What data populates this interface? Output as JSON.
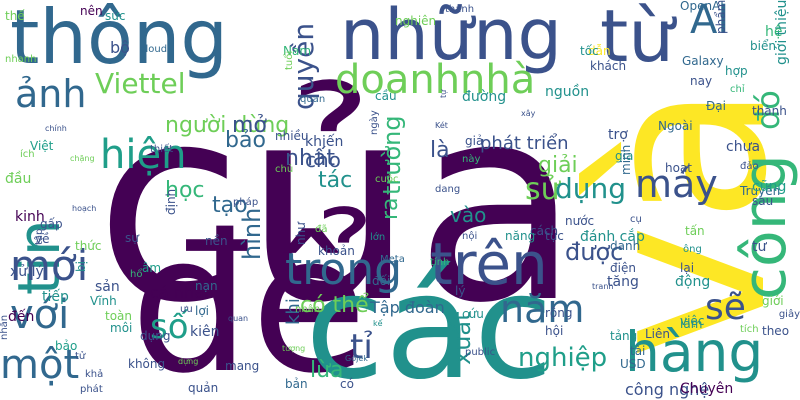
{
  "title": "",
  "palette": {
    "dark_purple": "#440154",
    "indigo": "#3b528b",
    "blue": "#31688e",
    "teal": "#21918c",
    "green_teal": "#1f9e89",
    "green": "#35b779",
    "lime": "#6ece58",
    "yellow": "#fde725"
  },
  "words": [
    {
      "text": "của",
      "color": "#440154"
    },
    {
      "text": "và",
      "color": "#fde725"
    },
    {
      "text": "để",
      "color": "#440154"
    },
    {
      "text": "các",
      "color": "#21918c"
    },
    {
      "text": "những",
      "color": "#3b528b"
    },
    {
      "text": "thông",
      "color": "#31688e"
    },
    {
      "text": "từ",
      "color": "#3b528b"
    },
    {
      "text": "tin",
      "color": "#21918c"
    },
    {
      "text": "công",
      "color": "#35b779"
    },
    {
      "text": "hàng",
      "color": "#21918c"
    },
    {
      "text": "trên",
      "color": "#3b528b"
    },
    {
      "text": "trong",
      "color": "#31688e"
    },
    {
      "text": "AI",
      "color": "#31688e"
    },
    {
      "text": "đó",
      "color": "#35b779"
    },
    {
      "text": "doanh",
      "color": "#6ece58"
    },
    {
      "text": "nhà",
      "color": "#6ece58"
    },
    {
      "text": "ảnh",
      "color": "#31688e"
    },
    {
      "text": "hiện",
      "color": "#1f9e89"
    },
    {
      "text": "mới",
      "color": "#3b528b"
    },
    {
      "text": "với",
      "color": "#31688e"
    },
    {
      "text": "một",
      "color": "#31688e"
    },
    {
      "text": "năm",
      "color": "#31688e"
    },
    {
      "text": "máy",
      "color": "#3b528b"
    },
    {
      "text": "Viettel",
      "color": "#6ece58"
    },
    {
      "text": "người dùng",
      "color": "#6ece58"
    },
    {
      "text": "quyền",
      "color": "#3b528b"
    },
    {
      "text": "sẽ",
      "color": "#3b528b"
    },
    {
      "text": "tỉ",
      "color": "#3b528b"
    },
    {
      "text": "số",
      "color": "#1f9e89"
    },
    {
      "text": "hình",
      "color": "#31688e"
    },
    {
      "text": "được",
      "color": "#3b528b"
    },
    {
      "text": "sử",
      "color": "#6ece58"
    },
    {
      "text": "dụng",
      "color": "#21918c"
    },
    {
      "text": "xuất",
      "color": "#21918c"
    },
    {
      "text": "nghiệp",
      "color": "#1f9e89"
    },
    {
      "text": "có thể",
      "color": "#6ece58"
    },
    {
      "text": "cho",
      "color": "#3b528b"
    },
    {
      "text": "phát triển",
      "color": "#3b528b"
    },
    {
      "text": "trường",
      "color": "#35b779"
    },
    {
      "text": "ra",
      "color": "#35b779"
    },
    {
      "text": "là",
      "color": "#3b528b"
    },
    {
      "text": "nhất",
      "color": "#3b528b"
    },
    {
      "text": "mở",
      "color": "#3b528b"
    },
    {
      "text": "bảo",
      "color": "#31688e"
    },
    {
      "text": "tác",
      "color": "#21918c"
    },
    {
      "text": "giải",
      "color": "#6ece58"
    },
    {
      "text": "tạo",
      "color": "#31688e"
    },
    {
      "text": "học",
      "color": "#35b779"
    },
    {
      "text": "vào",
      "color": "#21918c"
    },
    {
      "text": "khi",
      "color": "#31688e"
    },
    {
      "text": "lừa",
      "color": "#35b779"
    },
    {
      "text": "cá nhân",
      "color": "#440154"
    },
    {
      "text": "Tập đoàn",
      "color": "#31688e"
    },
    {
      "text": "công nghệ",
      "color": "#3b528b"
    },
    {
      "text": "Chuyên",
      "color": "#440154"
    },
    {
      "text": "OpenAI",
      "color": "#31688e"
    },
    {
      "text": "giới thiệu",
      "color": "#21918c"
    },
    {
      "text": "biển",
      "color": "#21918c"
    },
    {
      "text": "hệ",
      "color": "#35b779"
    },
    {
      "text": "Galaxy",
      "color": "#31688e"
    },
    {
      "text": "khách",
      "color": "#3b528b"
    },
    {
      "text": "nguồn",
      "color": "#21918c"
    },
    {
      "text": "đánh cắp",
      "color": "#21918c"
    },
    {
      "text": "tiếp",
      "color": "#21918c"
    },
    {
      "text": "kinh",
      "color": "#440154"
    },
    {
      "text": "xử lý",
      "color": "#3b528b"
    },
    {
      "text": "đầu",
      "color": "#6ece58"
    },
    {
      "text": "Việt",
      "color": "#1f9e89"
    },
    {
      "text": "đến",
      "color": "#440154"
    },
    {
      "text": "bộ",
      "color": "#3b528b"
    },
    {
      "text": "thế",
      "color": "#6ece58"
    },
    {
      "text": "nên",
      "color": "#440154"
    },
    {
      "text": "sức",
      "color": "#21918c"
    },
    {
      "text": "cloud",
      "color": "#31688e"
    },
    {
      "text": "nhanh",
      "color": "#6ece58"
    },
    {
      "text": "Nam",
      "color": "#35b779"
    },
    {
      "text": "tuổi",
      "color": "#6ece58"
    },
    {
      "text": "khiến",
      "color": "#3b528b"
    },
    {
      "text": "nhiều",
      "color": "#3b528b"
    },
    {
      "text": "cầu",
      "color": "#21918c"
    },
    {
      "text": "đường",
      "color": "#21918c"
    },
    {
      "text": "nghiên",
      "color": "#6ece58"
    },
    {
      "text": "thanh",
      "color": "#3b528b"
    },
    {
      "text": "dẫn",
      "color": "#fde725"
    },
    {
      "text": "tốc",
      "color": "#21918c"
    },
    {
      "text": "phẩm",
      "color": "#3b528b"
    },
    {
      "text": "trợ",
      "color": "#3b528b"
    },
    {
      "text": "gia",
      "color": "#21918c"
    },
    {
      "text": "minh",
      "color": "#31688e"
    },
    {
      "text": "Ngoài",
      "color": "#31688e"
    },
    {
      "text": "hoạt",
      "color": "#3b528b"
    },
    {
      "text": "nay",
      "color": "#3b528b"
    },
    {
      "text": "hợp",
      "color": "#21918c"
    },
    {
      "text": "chỉ",
      "color": "#35b779"
    },
    {
      "text": "thành",
      "color": "#3b528b"
    },
    {
      "text": "Đại",
      "color": "#31688e"
    },
    {
      "text": "chưa",
      "color": "#3b528b"
    },
    {
      "text": "đảo",
      "color": "#3b528b"
    },
    {
      "text": "Truyền",
      "color": "#31688e"
    },
    {
      "text": "cũng",
      "color": "#1f9e89"
    },
    {
      "text": "sau",
      "color": "#3b528b"
    },
    {
      "text": "tấn",
      "color": "#6ece58"
    },
    {
      "text": "cụ",
      "color": "#3b528b"
    },
    {
      "text": "tư",
      "color": "#3b528b"
    },
    {
      "text": "lại",
      "color": "#3b528b"
    },
    {
      "text": "động",
      "color": "#21918c"
    },
    {
      "text": "điện",
      "color": "#3b528b"
    },
    {
      "text": "tăng",
      "color": "#3b528b"
    },
    {
      "text": "rộng",
      "color": "#3b528b"
    },
    {
      "text": "hội",
      "color": "#3b528b"
    },
    {
      "text": "tảng",
      "color": "#21918c"
    },
    {
      "text": "tài",
      "color": "#31688e"
    },
    {
      "text": "USD",
      "color": "#31688e"
    },
    {
      "text": "Liên",
      "color": "#3b528b"
    },
    {
      "text": "việc",
      "color": "#21918c"
    },
    {
      "text": "làm",
      "color": "#21918c"
    },
    {
      "text": "giới",
      "color": "#6ece58"
    },
    {
      "text": "tích",
      "color": "#6ece58"
    },
    {
      "text": "giây",
      "color": "#3b528b"
    },
    {
      "text": "theo",
      "color": "#3b528b"
    },
    {
      "text": "tục",
      "color": "#3b528b"
    },
    {
      "text": "danh",
      "color": "#31688e"
    },
    {
      "text": "cách",
      "color": "#3b528b"
    },
    {
      "text": "năng",
      "color": "#21918c"
    },
    {
      "text": "nước",
      "color": "#3b528b"
    },
    {
      "text": "lớn",
      "color": "#21918c"
    },
    {
      "text": "Meta",
      "color": "#31688e"
    },
    {
      "text": "đối",
      "color": "#31688e"
    },
    {
      "text": "lý",
      "color": "#3b528b"
    },
    {
      "text": "cứu",
      "color": "#21918c"
    },
    {
      "text": "tính",
      "color": "#35b779"
    },
    {
      "text": "như",
      "color": "#3b528b"
    },
    {
      "text": "đã",
      "color": "#6ece58"
    },
    {
      "text": "khoản",
      "color": "#3b528b"
    },
    {
      "text": "nhân",
      "color": "#6ece58"
    },
    {
      "text": "nội",
      "color": "#3b528b"
    },
    {
      "text": "dang",
      "color": "#3b528b"
    },
    {
      "text": "cuộc",
      "color": "#6ece58"
    },
    {
      "text": "này",
      "color": "#35b779"
    },
    {
      "text": "giả",
      "color": "#3b528b"
    },
    {
      "text": "quan",
      "color": "#31688e"
    },
    {
      "text": "ngày",
      "color": "#3b528b"
    },
    {
      "text": "chủ",
      "color": "#6ece58"
    },
    {
      "text": "nền",
      "color": "#3b528b"
    },
    {
      "text": "sự",
      "color": "#3b528b"
    },
    {
      "text": "âm",
      "color": "#1f9e89"
    },
    {
      "text": "định",
      "color": "#3b528b"
    },
    {
      "text": "pháp",
      "color": "#3b528b"
    },
    {
      "text": "thiết",
      "color": "#3b528b"
    },
    {
      "text": "tập",
      "color": "#3b528b"
    },
    {
      "text": "về",
      "color": "#3b528b"
    },
    {
      "text": "gấp",
      "color": "#3b528b"
    },
    {
      "text": "thức",
      "color": "#6ece58"
    },
    {
      "text": "bị",
      "color": "#21918c"
    },
    {
      "text": "sản",
      "color": "#3b528b"
    },
    {
      "text": "Vĩnh",
      "color": "#21918c"
    },
    {
      "text": "toàn",
      "color": "#6ece58"
    },
    {
      "text": "hổ",
      "color": "#35b779"
    },
    {
      "text": "nạn",
      "color": "#31688e"
    },
    {
      "text": "lợi",
      "color": "#31688e"
    },
    {
      "text": "kiên",
      "color": "#3b528b"
    },
    {
      "text": "ưu",
      "color": "#3b528b"
    },
    {
      "text": "môi",
      "color": "#21918c"
    },
    {
      "text": "dụng",
      "color": "#3b528b"
    },
    {
      "text": "không",
      "color": "#3b528b"
    },
    {
      "text": "mang",
      "color": "#3b528b"
    },
    {
      "text": "bản",
      "color": "#31688e"
    },
    {
      "text": "quản",
      "color": "#3b528b"
    },
    {
      "text": "có",
      "color": "#3b528b"
    },
    {
      "text": "bảo",
      "color": "#1f9e89"
    },
    {
      "text": "tử",
      "color": "#3b528b"
    },
    {
      "text": "khả",
      "color": "#3b528b"
    },
    {
      "text": "phát",
      "color": "#3b528b"
    },
    {
      "text": "public",
      "color": "#3b528b"
    },
    {
      "text": "Gojek",
      "color": "#31688e"
    },
    {
      "text": "nhắn",
      "color": "#3b528b"
    },
    {
      "text": "chặng",
      "color": "#6ece58"
    },
    {
      "text": "chính",
      "color": "#3b528b"
    },
    {
      "text": "ích",
      "color": "#6ece58"
    },
    {
      "text": "hoạch",
      "color": "#3b528b"
    },
    {
      "text": "kế",
      "color": "#21918c"
    },
    {
      "text": "Két",
      "color": "#3b528b"
    },
    {
      "text": "xây",
      "color": "#3b528b"
    },
    {
      "text": "tranh",
      "color": "#3b528b"
    },
    {
      "text": "dựng",
      "color": "#6ece58"
    },
    {
      "text": "tượng",
      "color": "#6ece58"
    },
    {
      "text": "quan",
      "color": "#3b528b"
    },
    {
      "text": "tự",
      "color": "#3b528b"
    },
    {
      "text": "ông",
      "color": "#21918c"
    }
  ]
}
